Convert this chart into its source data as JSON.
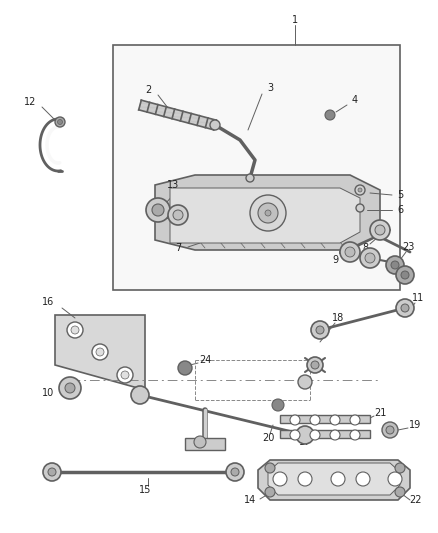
{
  "bg_color": "#ffffff",
  "line_color": "#606060",
  "dark_color": "#404040",
  "label_fontsize": 7.0,
  "figsize": [
    4.38,
    5.33
  ],
  "dpi": 100
}
